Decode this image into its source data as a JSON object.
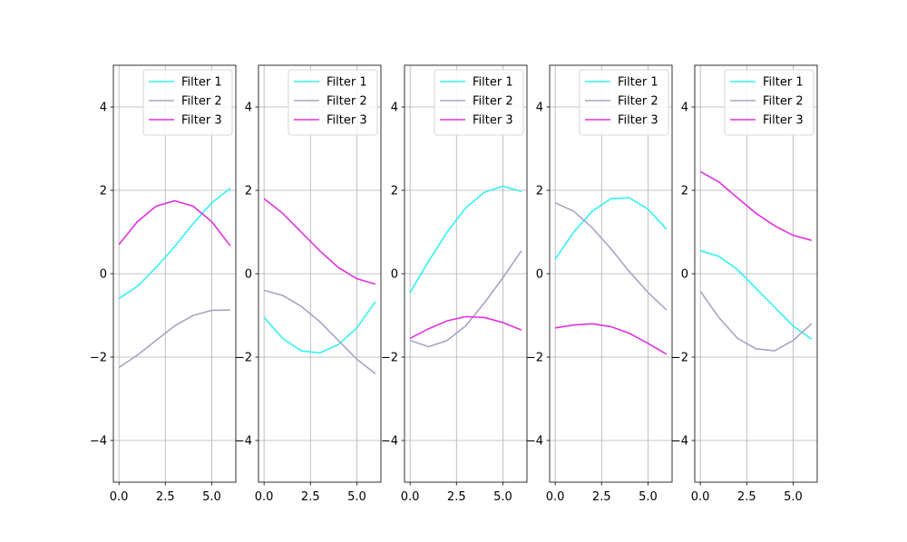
{
  "chart_data": [
    {
      "type": "line",
      "x": [
        0,
        1,
        2,
        3,
        4,
        5,
        6
      ],
      "xlim": [
        -0.3,
        6.3
      ],
      "ylim": [
        -5,
        5
      ],
      "xticks": [
        0.0,
        2.5,
        5.0
      ],
      "xtick_labels": [
        "0.0",
        "2.5",
        "5.0"
      ],
      "yticks": [
        -4,
        -2,
        0,
        2,
        4
      ],
      "ytick_labels": [
        "−4",
        "−2",
        "0",
        "2",
        "4"
      ],
      "grid": true,
      "legend_position": "upper right",
      "series": [
        {
          "name": "Filter 1",
          "color": "#33f2f2",
          "values": [
            -0.6,
            -0.3,
            0.15,
            0.65,
            1.2,
            1.7,
            2.05
          ]
        },
        {
          "name": "Filter 2",
          "color": "#a8a4c4",
          "values": [
            -2.25,
            -1.95,
            -1.6,
            -1.25,
            -1.0,
            -0.88,
            -0.87
          ]
        },
        {
          "name": "Filter 3",
          "color": "#e031e0",
          "values": [
            0.7,
            1.25,
            1.62,
            1.75,
            1.62,
            1.25,
            0.67
          ]
        }
      ]
    },
    {
      "type": "line",
      "x": [
        0,
        1,
        2,
        3,
        4,
        5,
        6
      ],
      "xlim": [
        -0.3,
        6.3
      ],
      "ylim": [
        -5,
        5
      ],
      "xticks": [
        0.0,
        2.5,
        5.0
      ],
      "xtick_labels": [
        "0.0",
        "2.5",
        "5.0"
      ],
      "yticks": [
        -4,
        -2,
        0,
        2,
        4
      ],
      "ytick_labels": [
        "−4",
        "−2",
        "0",
        "2",
        "4"
      ],
      "grid": true,
      "legend_position": "upper right",
      "series": [
        {
          "name": "Filter 1",
          "color": "#33f2f2",
          "values": [
            -1.05,
            -1.55,
            -1.85,
            -1.9,
            -1.7,
            -1.3,
            -0.67
          ]
        },
        {
          "name": "Filter 2",
          "color": "#a8a4c4",
          "values": [
            -0.4,
            -0.52,
            -0.78,
            -1.15,
            -1.6,
            -2.05,
            -2.4
          ]
        },
        {
          "name": "Filter 3",
          "color": "#e031e0",
          "values": [
            1.8,
            1.45,
            1.0,
            0.55,
            0.15,
            -0.12,
            -0.25
          ]
        }
      ]
    },
    {
      "type": "line",
      "x": [
        0,
        1,
        2,
        3,
        4,
        5,
        6
      ],
      "xlim": [
        -0.3,
        6.3
      ],
      "ylim": [
        -5,
        5
      ],
      "xticks": [
        0.0,
        2.5,
        5.0
      ],
      "xtick_labels": [
        "0.0",
        "2.5",
        "5.0"
      ],
      "yticks": [
        -4,
        -2,
        0,
        2,
        4
      ],
      "ytick_labels": [
        "−4",
        "−2",
        "0",
        "2",
        "4"
      ],
      "grid": true,
      "legend_position": "upper right",
      "series": [
        {
          "name": "Filter 1",
          "color": "#33f2f2",
          "values": [
            -0.45,
            0.3,
            1.0,
            1.58,
            1.95,
            2.1,
            1.97
          ]
        },
        {
          "name": "Filter 2",
          "color": "#a8a4c4",
          "values": [
            -1.6,
            -1.75,
            -1.6,
            -1.25,
            -0.7,
            -0.1,
            0.55
          ]
        },
        {
          "name": "Filter 3",
          "color": "#e031e0",
          "values": [
            -1.55,
            -1.32,
            -1.13,
            -1.03,
            -1.05,
            -1.17,
            -1.35
          ]
        }
      ]
    },
    {
      "type": "line",
      "x": [
        0,
        1,
        2,
        3,
        4,
        5,
        6
      ],
      "xlim": [
        -0.3,
        6.3
      ],
      "ylim": [
        -5,
        5
      ],
      "xticks": [
        0.0,
        2.5,
        5.0
      ],
      "xtick_labels": [
        "0.0",
        "2.5",
        "5.0"
      ],
      "yticks": [
        -4,
        -2,
        0,
        2,
        4
      ],
      "ytick_labels": [
        "−4",
        "−2",
        "0",
        "2",
        "4"
      ],
      "grid": true,
      "legend_position": "upper right",
      "series": [
        {
          "name": "Filter 1",
          "color": "#33f2f2",
          "values": [
            0.35,
            1.0,
            1.5,
            1.8,
            1.82,
            1.55,
            1.07
          ]
        },
        {
          "name": "Filter 2",
          "color": "#a8a4c4",
          "values": [
            1.7,
            1.5,
            1.1,
            0.6,
            0.05,
            -0.45,
            -0.87
          ]
        },
        {
          "name": "Filter 3",
          "color": "#e031e0",
          "values": [
            -1.3,
            -1.23,
            -1.2,
            -1.27,
            -1.43,
            -1.67,
            -1.93
          ]
        }
      ]
    },
    {
      "type": "line",
      "x": [
        0,
        1,
        2,
        3,
        4,
        5,
        6
      ],
      "xlim": [
        -0.3,
        6.3
      ],
      "ylim": [
        -5,
        5
      ],
      "xticks": [
        0.0,
        2.5,
        5.0
      ],
      "xtick_labels": [
        "0.0",
        "2.5",
        "5.0"
      ],
      "yticks": [
        -4,
        -2,
        0,
        2,
        4
      ],
      "ytick_labels": [
        "−4",
        "−2",
        "0",
        "2",
        "4"
      ],
      "grid": true,
      "legend_position": "upper right",
      "series": [
        {
          "name": "Filter 1",
          "color": "#33f2f2",
          "values": [
            0.55,
            0.42,
            0.1,
            -0.35,
            -0.8,
            -1.25,
            -1.57
          ]
        },
        {
          "name": "Filter 2",
          "color": "#a8a4c4",
          "values": [
            -0.42,
            -1.05,
            -1.55,
            -1.8,
            -1.85,
            -1.6,
            -1.2
          ]
        },
        {
          "name": "Filter 3",
          "color": "#e031e0",
          "values": [
            2.45,
            2.2,
            1.82,
            1.45,
            1.15,
            0.92,
            0.8
          ]
        }
      ]
    }
  ]
}
